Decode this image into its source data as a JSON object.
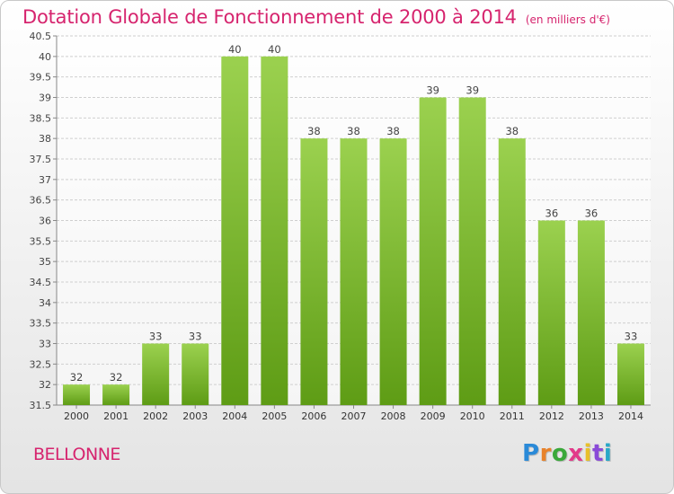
{
  "chart_data": {
    "type": "bar",
    "title": "Dotation Globale de Fonctionnement de 2000 à 2014",
    "unit_label": "(en milliers d'€)",
    "categories": [
      "2000",
      "2001",
      "2002",
      "2003",
      "2004",
      "2005",
      "2006",
      "2007",
      "2008",
      "2009",
      "2010",
      "2011",
      "2012",
      "2013",
      "2014"
    ],
    "values": [
      32,
      32,
      33,
      33,
      40,
      40,
      38,
      38,
      38,
      39,
      39,
      38,
      36,
      36,
      33
    ],
    "data_labels": [
      "32",
      "32",
      "33",
      "33",
      "40",
      "40",
      "38",
      "38",
      "38",
      "39",
      "39",
      "38",
      "36",
      "36",
      "33"
    ],
    "yticks": [
      "31.5",
      "32",
      "32.5",
      "33",
      "33.5",
      "34",
      "34.5",
      "35",
      "35.5",
      "36",
      "36.5",
      "37",
      "37.5",
      "38",
      "38.5",
      "39",
      "39.5",
      "40",
      "40.5"
    ],
    "ylim": [
      31.5,
      40.5
    ],
    "grid": true,
    "colors": {
      "bar_light": "#9bd14f",
      "bar_dark": "#5e9c15",
      "title": "#d6246e"
    }
  },
  "footer": {
    "city": "BELLONNE",
    "logo_letters": [
      "P",
      "r",
      "o",
      "x",
      "i",
      "t",
      "i"
    ],
    "logo_colors": [
      "#2a8ad8",
      "#e8822a",
      "#3aa83a",
      "#e23a8a",
      "#e8c02a",
      "#8a4ad8",
      "#2aa8c8"
    ]
  }
}
